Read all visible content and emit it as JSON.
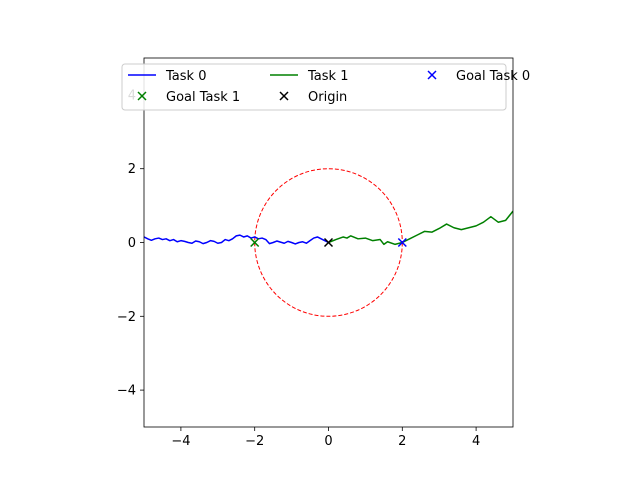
{
  "chart_data": {
    "type": "line",
    "title": "",
    "xlabel": "",
    "ylabel": "",
    "xlim": [
      -5,
      5
    ],
    "ylim": [
      -5,
      5
    ],
    "xticks": [
      -4,
      -2,
      0,
      2,
      4
    ],
    "yticks": [
      -4,
      -2,
      0,
      2,
      4
    ],
    "grid": false,
    "legend_position": "top",
    "series": [
      {
        "name": "Task 0",
        "kind": "line",
        "color": "#0000ff",
        "x": [
          0,
          -0.1,
          -0.2,
          -0.3,
          -0.4,
          -0.5,
          -0.6,
          -0.7,
          -0.8,
          -0.9,
          -1.0,
          -1.1,
          -1.2,
          -1.3,
          -1.4,
          -1.5,
          -1.6,
          -1.7,
          -1.8,
          -1.9,
          -2.0,
          -2.1,
          -2.2,
          -2.3,
          -2.4,
          -2.5,
          -2.6,
          -2.7,
          -2.8,
          -2.9,
          -3.0,
          -3.1,
          -3.2,
          -3.3,
          -3.4,
          -3.5,
          -3.6,
          -3.7,
          -3.8,
          -3.9,
          -4.0,
          -4.1,
          -4.2,
          -4.3,
          -4.4,
          -4.5,
          -4.6,
          -4.7,
          -4.8,
          -4.9,
          -5.0
        ],
        "y": [
          0,
          0.05,
          0.1,
          0.15,
          0.12,
          0.05,
          -0.02,
          0.02,
          0.0,
          -0.04,
          0.0,
          0.03,
          -0.02,
          0.01,
          0.04,
          0.0,
          -0.03,
          0.08,
          0.12,
          0.1,
          0.15,
          0.12,
          0.18,
          0.15,
          0.2,
          0.18,
          0.1,
          0.05,
          0.08,
          0.0,
          -0.02,
          0.03,
          0.05,
          0.0,
          -0.03,
          0.02,
          0.04,
          -0.02,
          0.0,
          0.03,
          0.05,
          0.02,
          0.08,
          0.05,
          0.1,
          0.08,
          0.12,
          0.1,
          0.06,
          0.1,
          0.15
        ]
      },
      {
        "name": "Task 1",
        "kind": "line",
        "color": "#008000",
        "x": [
          0,
          0.2,
          0.4,
          0.5,
          0.6,
          0.8,
          1.0,
          1.2,
          1.4,
          1.5,
          1.6,
          1.8,
          2.0,
          2.2,
          2.4,
          2.6,
          2.8,
          3.0,
          3.2,
          3.4,
          3.6,
          3.8,
          4.0,
          4.2,
          4.4,
          4.6,
          4.8,
          5.0
        ],
        "y": [
          0,
          0.08,
          0.15,
          0.12,
          0.18,
          0.1,
          0.12,
          0.05,
          0.08,
          -0.05,
          0.02,
          -0.05,
          0.0,
          0.1,
          0.2,
          0.3,
          0.28,
          0.38,
          0.5,
          0.4,
          0.35,
          0.4,
          0.45,
          0.55,
          0.7,
          0.55,
          0.6,
          0.85
        ]
      },
      {
        "name": "Goal Task 0",
        "kind": "marker",
        "color": "#0000ff",
        "x": [
          2
        ],
        "y": [
          0
        ]
      },
      {
        "name": "Goal Task 1",
        "kind": "marker",
        "color": "#008000",
        "x": [
          -2
        ],
        "y": [
          0
        ]
      },
      {
        "name": "Origin",
        "kind": "marker",
        "color": "#000000",
        "x": [
          0
        ],
        "y": [
          0
        ]
      }
    ],
    "circle": {
      "center": [
        0,
        0
      ],
      "radius": 2,
      "color": "#ff0000",
      "style": "dashed"
    }
  }
}
